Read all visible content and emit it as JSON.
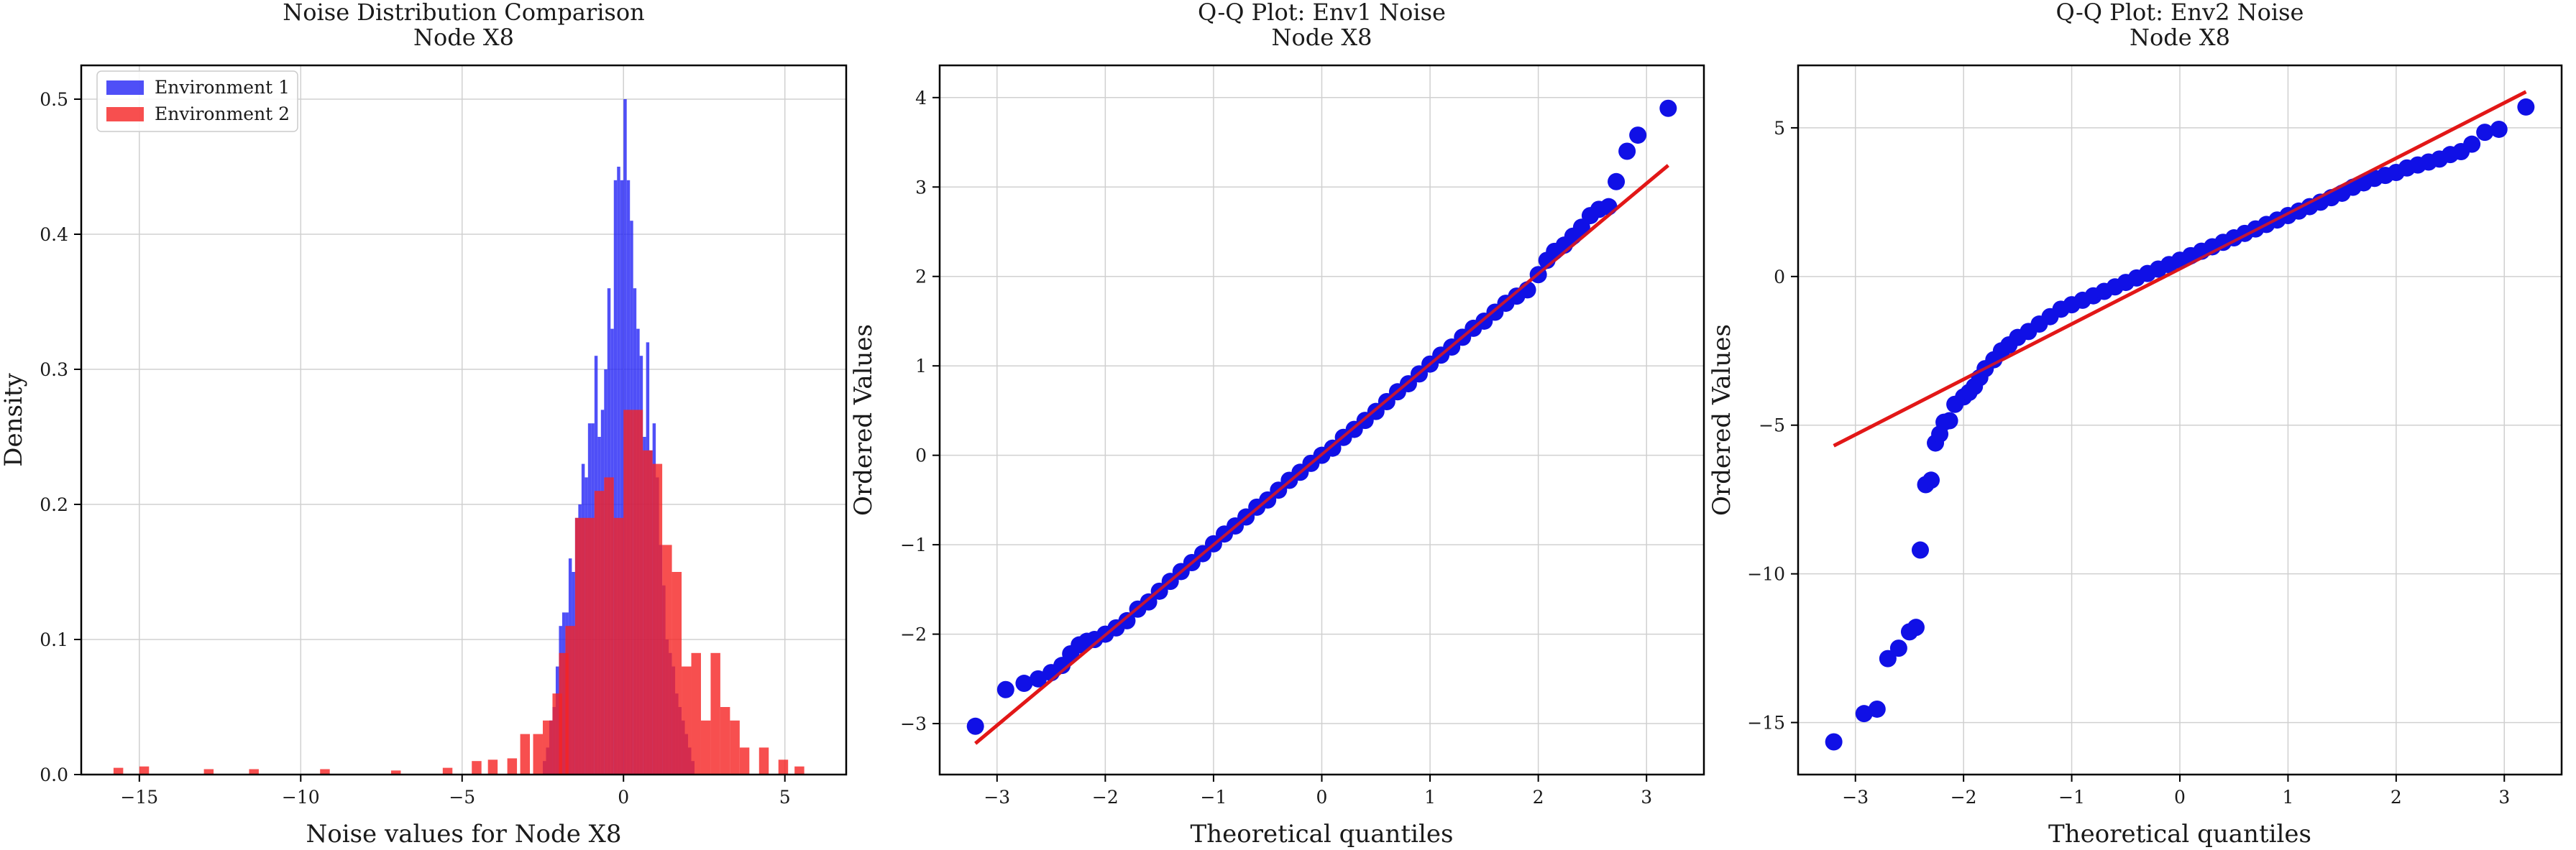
{
  "figure": {
    "background": "#ffffff",
    "grid": true
  },
  "chart_data": [
    {
      "type": "histogram",
      "title": "Noise Distribution Comparison\nNode X8",
      "xlabel": "Noise values for Node X8",
      "ylabel": "Density",
      "xlim": [
        -16.8,
        6.9
      ],
      "ylim": [
        0,
        0.525
      ],
      "xticks": [
        -15,
        -10,
        -5,
        0,
        5
      ],
      "yticks": [
        0.0,
        0.1,
        0.2,
        0.3,
        0.4,
        0.5
      ],
      "tick_labels_x": [
        "−15",
        "−10",
        "−5",
        "0",
        "5"
      ],
      "tick_labels_y": [
        "0.0",
        "0.1",
        "0.2",
        "0.3",
        "0.4",
        "0.5"
      ],
      "legend_position": "upper-left",
      "series": [
        {
          "name": "Environment 1",
          "color": "#2323f5",
          "opacity": 0.8,
          "bins": [
            [
              -2.5,
              0.01
            ],
            [
              -2.4,
              0.02
            ],
            [
              -2.3,
              0.04
            ],
            [
              -2.2,
              0.05
            ],
            [
              -2.1,
              0.08
            ],
            [
              -2.0,
              0.11
            ],
            [
              -1.9,
              0.12
            ],
            [
              -1.8,
              0.12
            ],
            [
              -1.7,
              0.16
            ],
            [
              -1.6,
              0.15
            ],
            [
              -1.5,
              0.19
            ],
            [
              -1.4,
              0.2
            ],
            [
              -1.3,
              0.23
            ],
            [
              -1.2,
              0.22
            ],
            [
              -1.1,
              0.26
            ],
            [
              -1.0,
              0.26
            ],
            [
              -0.9,
              0.31
            ],
            [
              -0.8,
              0.25
            ],
            [
              -0.7,
              0.27
            ],
            [
              -0.6,
              0.3
            ],
            [
              -0.5,
              0.36
            ],
            [
              -0.4,
              0.33
            ],
            [
              -0.3,
              0.44
            ],
            [
              -0.2,
              0.45
            ],
            [
              -0.1,
              0.44
            ],
            [
              0.0,
              0.5
            ],
            [
              0.1,
              0.44
            ],
            [
              0.2,
              0.41
            ],
            [
              0.3,
              0.36
            ],
            [
              0.4,
              0.33
            ],
            [
              0.5,
              0.31
            ],
            [
              0.6,
              0.25
            ],
            [
              0.7,
              0.32
            ],
            [
              0.8,
              0.24
            ],
            [
              0.9,
              0.26
            ],
            [
              1.0,
              0.22
            ],
            [
              1.1,
              0.17
            ],
            [
              1.2,
              0.14
            ],
            [
              1.3,
              0.1
            ],
            [
              1.4,
              0.09
            ],
            [
              1.5,
              0.08
            ],
            [
              1.6,
              0.06
            ],
            [
              1.7,
              0.05
            ],
            [
              1.8,
              0.04
            ],
            [
              1.9,
              0.03
            ],
            [
              2.0,
              0.02
            ],
            [
              2.1,
              0.01
            ]
          ]
        },
        {
          "name": "Environment 2",
          "color": "#f52323",
          "opacity": 0.8,
          "bins": [
            [
              -15.8,
              0.005
            ],
            [
              -15.0,
              0.006
            ],
            [
              -13.0,
              0.004
            ],
            [
              -11.6,
              0.004
            ],
            [
              -9.4,
              0.004
            ],
            [
              -7.2,
              0.003
            ],
            [
              -5.6,
              0.005
            ],
            [
              -4.7,
              0.01
            ],
            [
              -4.2,
              0.011
            ],
            [
              -3.6,
              0.012
            ],
            [
              -3.2,
              0.03
            ],
            [
              -2.8,
              0.03
            ],
            [
              -2.5,
              0.04
            ],
            [
              -2.2,
              0.06
            ],
            [
              -2.0,
              0.09
            ],
            [
              -1.8,
              0.11
            ],
            [
              -1.5,
              0.19
            ],
            [
              -1.2,
              0.19
            ],
            [
              -0.9,
              0.21
            ],
            [
              -0.6,
              0.22
            ],
            [
              -0.3,
              0.19
            ],
            [
              0.0,
              0.27
            ],
            [
              0.3,
              0.27
            ],
            [
              0.6,
              0.24
            ],
            [
              0.9,
              0.23
            ],
            [
              1.2,
              0.17
            ],
            [
              1.5,
              0.15
            ],
            [
              1.8,
              0.08
            ],
            [
              2.1,
              0.09
            ],
            [
              2.4,
              0.04
            ],
            [
              2.7,
              0.09
            ],
            [
              3.0,
              0.05
            ],
            [
              3.3,
              0.04
            ],
            [
              3.6,
              0.02
            ],
            [
              4.2,
              0.02
            ],
            [
              4.8,
              0.011
            ],
            [
              5.3,
              0.006
            ]
          ]
        }
      ]
    },
    {
      "type": "scatter",
      "title": "Q-Q Plot: Env1 Noise\nNode X8",
      "xlabel": "Theoretical quantiles",
      "ylabel": "Ordered Values",
      "xlim": [
        -3.53,
        3.53
      ],
      "ylim": [
        -3.57,
        4.36
      ],
      "xticks": [
        -3,
        -2,
        -1,
        0,
        1,
        2,
        3
      ],
      "yticks": [
        -3,
        -2,
        -1,
        0,
        1,
        2,
        3,
        4
      ],
      "tick_labels_x": [
        "−3",
        "−2",
        "−1",
        "0",
        "1",
        "2",
        "3"
      ],
      "tick_labels_y": [
        "−3",
        "−2",
        "−1",
        "0",
        "1",
        "2",
        "3",
        "4"
      ],
      "points_color": "#1010e6",
      "line_color": "#e21818",
      "fit_line": {
        "slope": 1.01,
        "intercept": 0.01,
        "x_range": [
          -3.2,
          3.2
        ]
      },
      "points": [
        [
          -3.2,
          -3.03
        ],
        [
          -2.92,
          -2.62
        ],
        [
          -2.75,
          -2.55
        ],
        [
          -2.62,
          -2.5
        ],
        [
          -2.5,
          -2.43
        ],
        [
          -2.4,
          -2.35
        ],
        [
          -2.32,
          -2.22
        ],
        [
          -2.24,
          -2.12
        ],
        [
          -2.17,
          -2.08
        ],
        [
          -2.1,
          -2.06
        ],
        [
          -2.0,
          -2.0
        ],
        [
          -1.9,
          -1.93
        ],
        [
          -1.8,
          -1.85
        ],
        [
          -1.7,
          -1.72
        ],
        [
          -1.6,
          -1.64
        ],
        [
          -1.5,
          -1.52
        ],
        [
          -1.4,
          -1.41
        ],
        [
          -1.3,
          -1.3
        ],
        [
          -1.2,
          -1.2
        ],
        [
          -1.1,
          -1.1
        ],
        [
          -1.0,
          -0.99
        ],
        [
          -0.9,
          -0.88
        ],
        [
          -0.8,
          -0.79
        ],
        [
          -0.7,
          -0.69
        ],
        [
          -0.6,
          -0.58
        ],
        [
          -0.5,
          -0.5
        ],
        [
          -0.4,
          -0.39
        ],
        [
          -0.3,
          -0.28
        ],
        [
          -0.2,
          -0.19
        ],
        [
          -0.1,
          -0.09
        ],
        [
          0.0,
          0.0
        ],
        [
          0.1,
          0.08
        ],
        [
          0.2,
          0.2
        ],
        [
          0.3,
          0.29
        ],
        [
          0.4,
          0.39
        ],
        [
          0.5,
          0.49
        ],
        [
          0.6,
          0.6
        ],
        [
          0.7,
          0.71
        ],
        [
          0.8,
          0.8
        ],
        [
          0.9,
          0.91
        ],
        [
          1.0,
          1.02
        ],
        [
          1.1,
          1.12
        ],
        [
          1.2,
          1.21
        ],
        [
          1.3,
          1.32
        ],
        [
          1.4,
          1.42
        ],
        [
          1.5,
          1.5
        ],
        [
          1.6,
          1.6
        ],
        [
          1.7,
          1.7
        ],
        [
          1.8,
          1.78
        ],
        [
          1.9,
          1.85
        ],
        [
          2.0,
          2.02
        ],
        [
          2.08,
          2.18
        ],
        [
          2.15,
          2.28
        ],
        [
          2.24,
          2.35
        ],
        [
          2.32,
          2.45
        ],
        [
          2.4,
          2.55
        ],
        [
          2.48,
          2.68
        ],
        [
          2.56,
          2.75
        ],
        [
          2.65,
          2.78
        ],
        [
          2.72,
          3.06
        ],
        [
          2.82,
          3.4
        ],
        [
          2.92,
          3.58
        ],
        [
          3.2,
          3.88
        ]
      ]
    },
    {
      "type": "scatter",
      "title": "Q-Q Plot: Env2 Noise\nNode X8",
      "xlabel": "Theoretical quantiles",
      "ylabel": "Ordered Values",
      "xlim": [
        -3.53,
        3.53
      ],
      "ylim": [
        -16.75,
        7.1
      ],
      "xticks": [
        -3,
        -2,
        -1,
        0,
        1,
        2,
        3
      ],
      "yticks": [
        -15,
        -10,
        -5,
        0,
        5
      ],
      "tick_labels_x": [
        "−3",
        "−2",
        "−1",
        "0",
        "1",
        "2",
        "3"
      ],
      "tick_labels_y": [
        "−15",
        "−10",
        "−5",
        "0",
        "5"
      ],
      "points_color": "#1010e6",
      "line_color": "#e21818",
      "fit_line": {
        "slope": 1.86,
        "intercept": 0.26,
        "x_range": [
          -3.2,
          3.2
        ]
      },
      "points": [
        [
          -3.2,
          -15.65
        ],
        [
          -2.92,
          -14.7
        ],
        [
          -2.8,
          -14.55
        ],
        [
          -2.7,
          -12.85
        ],
        [
          -2.6,
          -12.5
        ],
        [
          -2.5,
          -11.95
        ],
        [
          -2.44,
          -11.8
        ],
        [
          -2.4,
          -9.2
        ],
        [
          -2.35,
          -7.0
        ],
        [
          -2.3,
          -6.85
        ],
        [
          -2.26,
          -5.6
        ],
        [
          -2.22,
          -5.3
        ],
        [
          -2.18,
          -4.9
        ],
        [
          -2.13,
          -4.85
        ],
        [
          -2.08,
          -4.3
        ],
        [
          -2.0,
          -4.05
        ],
        [
          -1.95,
          -3.9
        ],
        [
          -1.9,
          -3.7
        ],
        [
          -1.85,
          -3.4
        ],
        [
          -1.8,
          -3.1
        ],
        [
          -1.72,
          -2.8
        ],
        [
          -1.65,
          -2.5
        ],
        [
          -1.58,
          -2.3
        ],
        [
          -1.5,
          -2.05
        ],
        [
          -1.4,
          -1.85
        ],
        [
          -1.3,
          -1.6
        ],
        [
          -1.2,
          -1.35
        ],
        [
          -1.1,
          -1.1
        ],
        [
          -1.0,
          -0.95
        ],
        [
          -0.9,
          -0.8
        ],
        [
          -0.8,
          -0.65
        ],
        [
          -0.7,
          -0.5
        ],
        [
          -0.6,
          -0.35
        ],
        [
          -0.5,
          -0.2
        ],
        [
          -0.4,
          -0.05
        ],
        [
          -0.3,
          0.1
        ],
        [
          -0.2,
          0.25
        ],
        [
          -0.1,
          0.4
        ],
        [
          0.0,
          0.55
        ],
        [
          0.1,
          0.7
        ],
        [
          0.2,
          0.85
        ],
        [
          0.3,
          1.0
        ],
        [
          0.4,
          1.15
        ],
        [
          0.5,
          1.3
        ],
        [
          0.6,
          1.45
        ],
        [
          0.7,
          1.6
        ],
        [
          0.8,
          1.75
        ],
        [
          0.9,
          1.9
        ],
        [
          1.0,
          2.05
        ],
        [
          1.1,
          2.2
        ],
        [
          1.2,
          2.35
        ],
        [
          1.3,
          2.5
        ],
        [
          1.4,
          2.65
        ],
        [
          1.5,
          2.8
        ],
        [
          1.6,
          3.0
        ],
        [
          1.7,
          3.15
        ],
        [
          1.8,
          3.3
        ],
        [
          1.9,
          3.4
        ],
        [
          2.0,
          3.5
        ],
        [
          2.1,
          3.65
        ],
        [
          2.2,
          3.75
        ],
        [
          2.3,
          3.85
        ],
        [
          2.4,
          3.95
        ],
        [
          2.5,
          4.1
        ],
        [
          2.6,
          4.2
        ],
        [
          2.7,
          4.45
        ],
        [
          2.82,
          4.85
        ],
        [
          2.95,
          4.95
        ],
        [
          3.2,
          5.7
        ]
      ]
    }
  ]
}
